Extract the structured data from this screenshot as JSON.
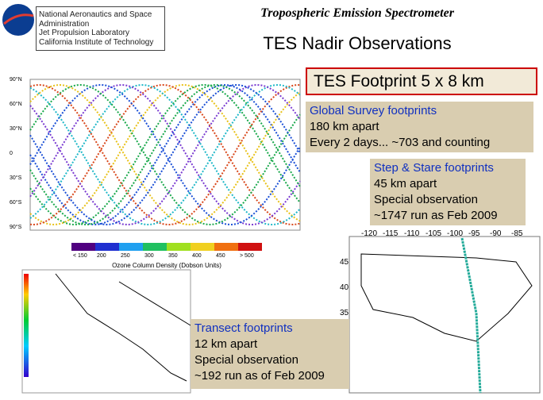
{
  "header": {
    "org_lines": [
      "National Aeronautics and Space",
      "Administration",
      "Jet Propulsion Laboratory",
      "California Institute of Technology"
    ],
    "title": "Tropospheric Emission Spectrometer",
    "subtitle": "TES Nadir Observations"
  },
  "footprint": "TES Footprint 5 x 8 km",
  "global_survey": {
    "heading": "Global Survey footprints",
    "lines": [
      "180 km apart",
      "Every 2 days... ~703 and counting"
    ]
  },
  "step_stare": {
    "heading": "Step & Stare footprints",
    "lines": [
      "45 km apart",
      "Special observation",
      "~1747 run as Feb 2009"
    ]
  },
  "transect": {
    "heading": "Transect footprints",
    "lines": [
      "12 km apart",
      "Special observation",
      "~192 run as of Feb 2009"
    ]
  },
  "global_map": {
    "lat_labels": [
      "90°N",
      "60°N",
      "30°N",
      "0",
      "30°S",
      "60°S",
      "90°S"
    ],
    "colorbar_labels": [
      "< 150",
      "200",
      "250",
      "300",
      "350",
      "400",
      "450",
      "> 500"
    ],
    "colorbar_title": "Ozone Column Density (Dobson Units)"
  },
  "us_map": {
    "lon_labels": [
      "-120",
      "-115",
      "-110",
      "-105",
      "-100",
      "-95",
      "-90",
      "-85"
    ],
    "lat_labels": [
      "45",
      "40",
      "35"
    ]
  }
}
